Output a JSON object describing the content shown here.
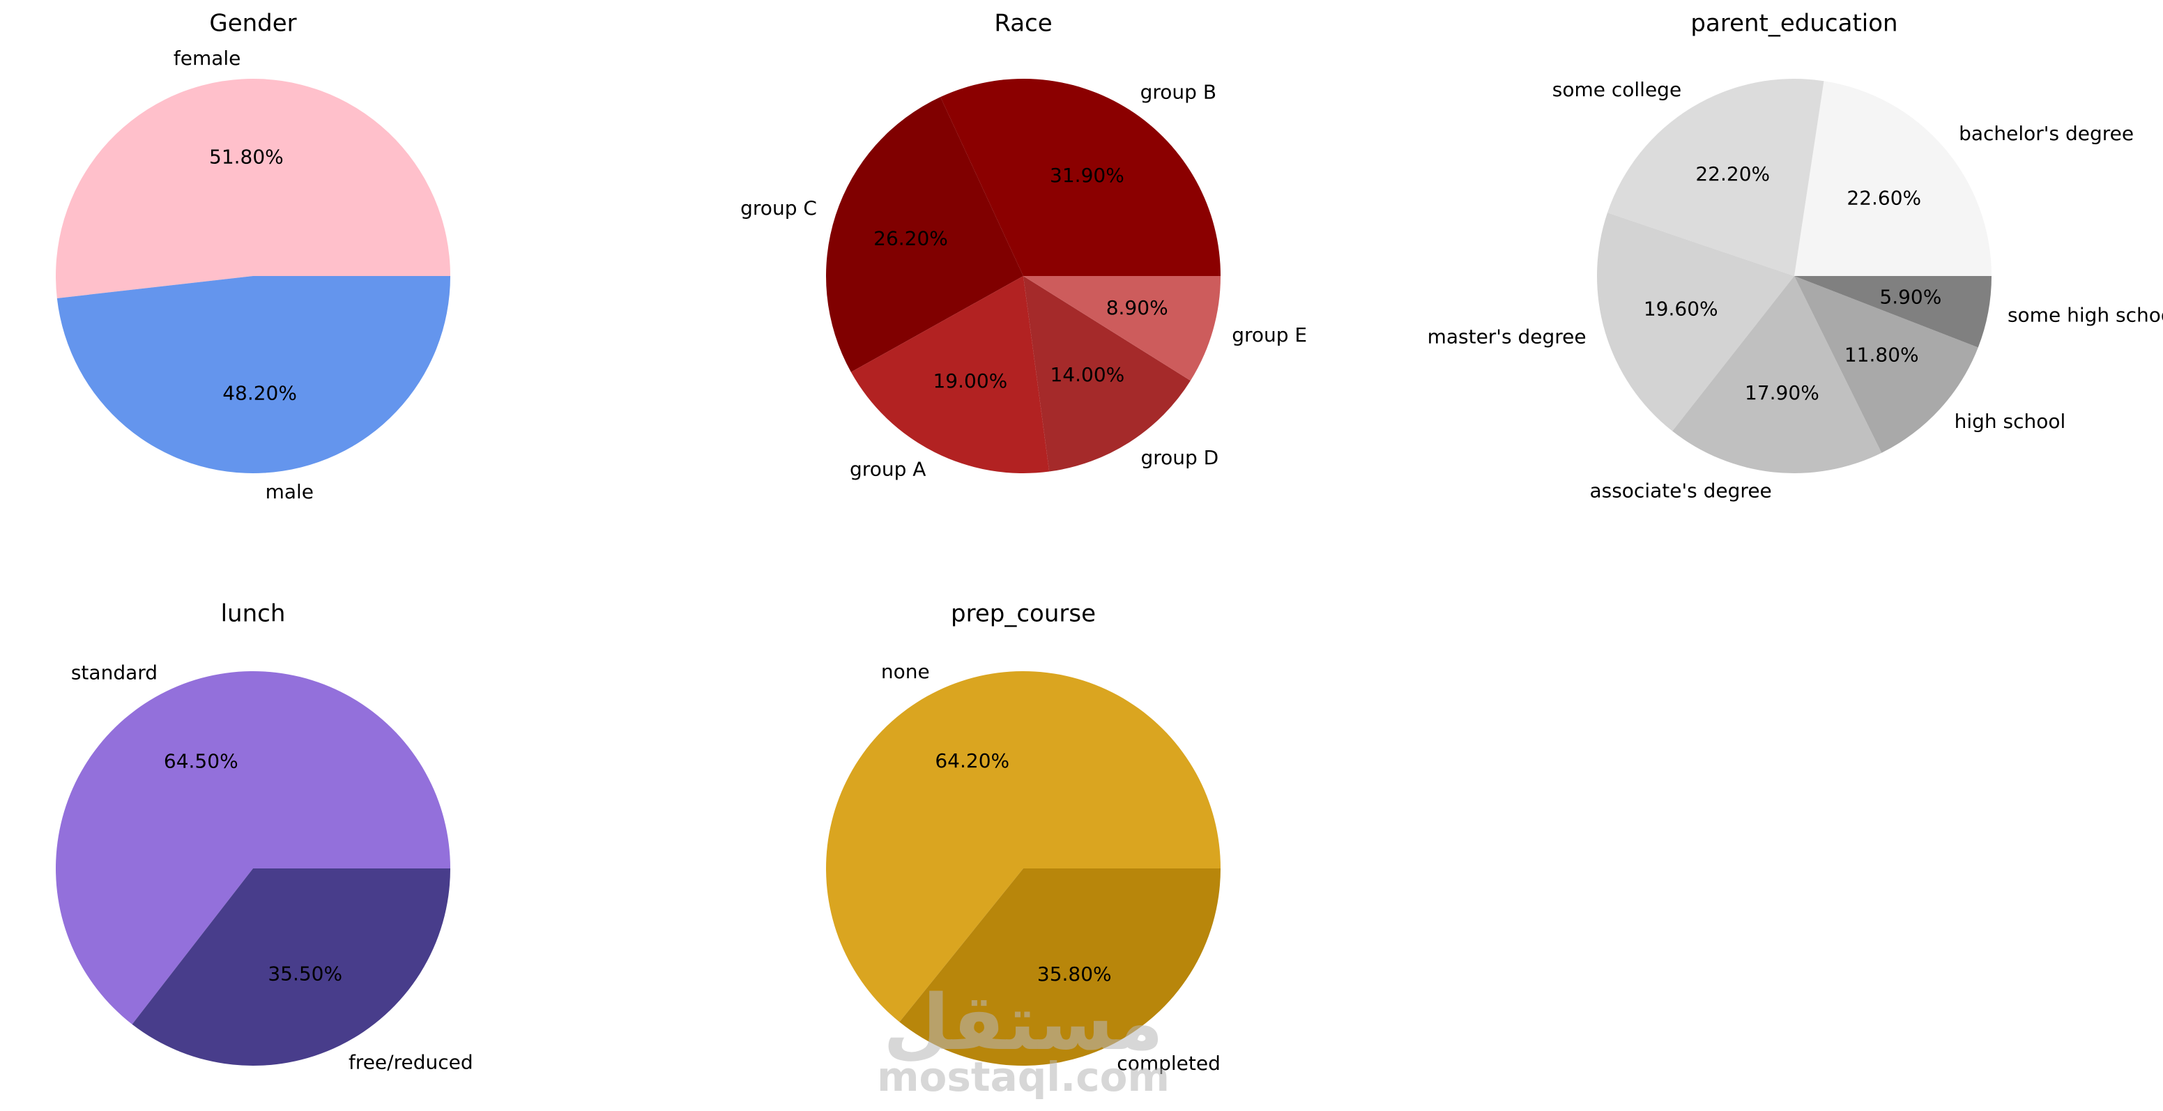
{
  "chart_data": [
    {
      "type": "pie",
      "title": "Gender",
      "categories": [
        "female",
        "male"
      ],
      "values": [
        51.8,
        48.2
      ],
      "percent_labels": [
        "51.80%",
        "48.20%"
      ],
      "colors": [
        "#ffc0cb",
        "#6495ed"
      ],
      "start_angle_deg": 0,
      "direction": "counterclockwise"
    },
    {
      "type": "pie",
      "title": "Race",
      "categories": [
        "group B",
        "group C",
        "group A",
        "group D",
        "group E"
      ],
      "values": [
        31.9,
        26.2,
        19.0,
        14.0,
        8.9
      ],
      "percent_labels": [
        "31.90%",
        "26.20%",
        "19.00%",
        "14.00%",
        "8.90%"
      ],
      "colors": [
        "#8b0000",
        "#800000",
        "#b22222",
        "#a52a2a",
        "#cd5c5c"
      ],
      "start_angle_deg": 0,
      "direction": "counterclockwise"
    },
    {
      "type": "pie",
      "title": "parent_education",
      "categories": [
        "bachelor's degree",
        "some college",
        "master's degree",
        "associate's degree",
        "high school",
        "some high school"
      ],
      "values": [
        22.6,
        22.2,
        19.6,
        17.9,
        11.8,
        5.9
      ],
      "percent_labels": [
        "22.60%",
        "22.20%",
        "19.60%",
        "17.90%",
        "11.80%",
        "5.90%"
      ],
      "colors": [
        "#f5f5f5",
        "#dcdcdc",
        "#d3d3d3",
        "#c0c0c0",
        "#a9a9a9",
        "#808080"
      ],
      "start_angle_deg": 0,
      "direction": "counterclockwise"
    },
    {
      "type": "pie",
      "title": "lunch",
      "categories": [
        "standard",
        "free/reduced"
      ],
      "values": [
        64.5,
        35.5
      ],
      "percent_labels": [
        "64.50%",
        "35.50%"
      ],
      "colors": [
        "#9370db",
        "#483d8b"
      ],
      "start_angle_deg": 0,
      "direction": "counterclockwise"
    },
    {
      "type": "pie",
      "title": "prep_course",
      "categories": [
        "none",
        "completed"
      ],
      "values": [
        64.2,
        35.8
      ],
      "percent_labels": [
        "64.20%",
        "35.80%"
      ],
      "colors": [
        "#daa520",
        "#b8860b"
      ],
      "start_angle_deg": 0,
      "direction": "counterclockwise"
    }
  ],
  "watermark": {
    "arabic": "مستقل",
    "latin": "mostaql.com"
  }
}
